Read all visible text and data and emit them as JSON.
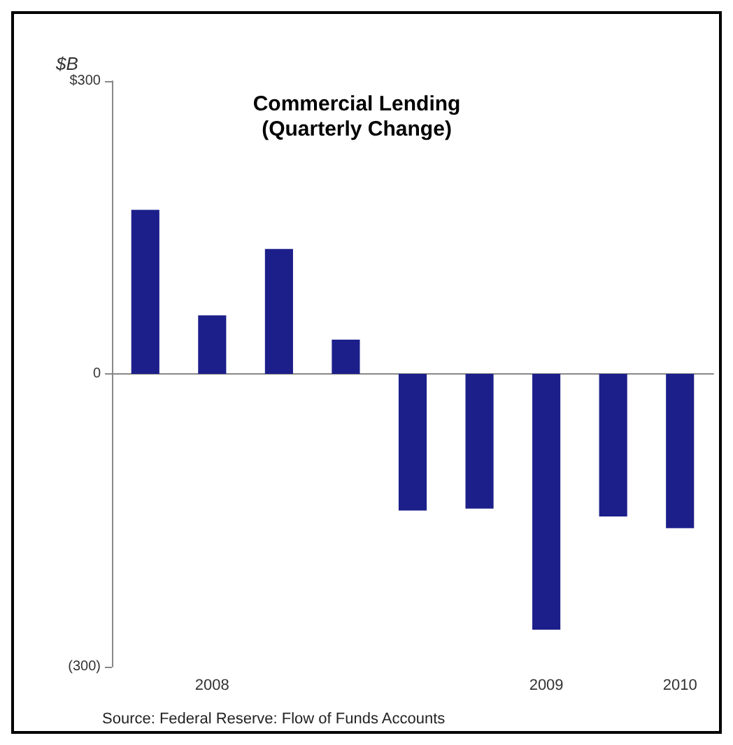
{
  "chart_data": {
    "type": "bar",
    "title": "Commercial Lending",
    "subtitle": "(Quarterly Change)",
    "ylabel": "$B",
    "categories": [
      null,
      "2008",
      null,
      null,
      null,
      null,
      "2009",
      null,
      "2010"
    ],
    "values": [
      168,
      60,
      128,
      35,
      -140,
      -138,
      -262,
      -146,
      -158
    ],
    "color": "#1c1f8a",
    "ylim": [
      -300,
      300
    ],
    "yticks": [
      {
        "value": -300,
        "label": "(300)"
      },
      0,
      {
        "value": 300,
        "label": "$300"
      }
    ],
    "annotations": [
      "Source: Federal Reserve: Flow of Funds Accounts"
    ]
  }
}
